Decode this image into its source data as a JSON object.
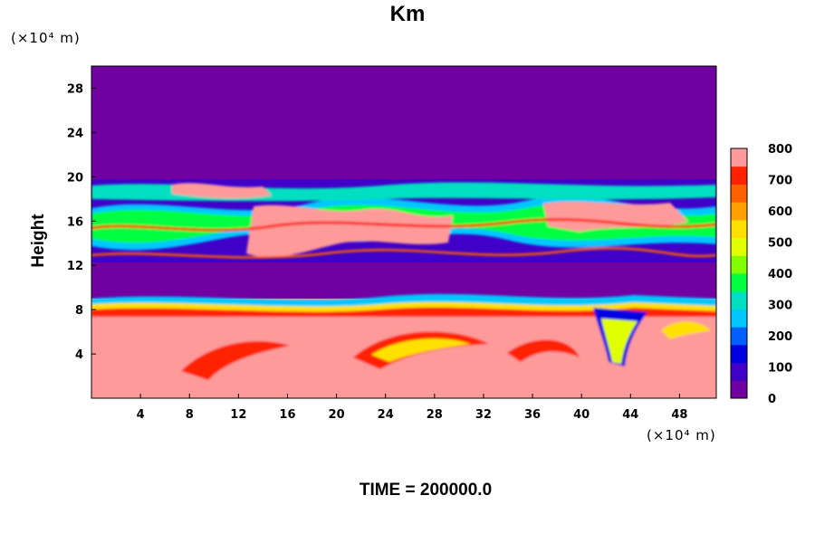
{
  "chart_data": {
    "type": "heatmap",
    "title": "Km",
    "ylabel": "Height",
    "y_unit": "(×10⁴ m)",
    "x_unit": "(×10⁴ m)",
    "xlim": [
      0,
      51
    ],
    "ylim": [
      0,
      30
    ],
    "xticks": [
      4,
      8,
      12,
      16,
      20,
      24,
      28,
      32,
      36,
      40,
      44,
      48
    ],
    "yticks": [
      4,
      8,
      12,
      16,
      20,
      24,
      28
    ],
    "colorbar": {
      "ticks": [
        0,
        100,
        200,
        300,
        400,
        500,
        600,
        700,
        800
      ],
      "stops": [
        "#7000a0",
        "#4000c8",
        "#0000e0",
        "#0060ff",
        "#00c8ff",
        "#00e0c0",
        "#00ff40",
        "#80ff00",
        "#e0ff00",
        "#ffe000",
        "#ffa000",
        "#ff6000",
        "#ff2000",
        "#ff9a9a"
      ]
    },
    "field_summary": [
      {
        "y_range": [
          20,
          30
        ],
        "value": 0
      },
      {
        "y_range": [
          18,
          20
        ],
        "value": "mixed"
      },
      {
        "y_range": [
          12,
          18
        ],
        "value": "mixed"
      },
      {
        "y_range": [
          9,
          12
        ],
        "value": 0
      },
      {
        "y_range": [
          0,
          9
        ],
        "value": 800
      }
    ]
  },
  "time": {
    "label": "TIME",
    "value": "200000.0"
  }
}
